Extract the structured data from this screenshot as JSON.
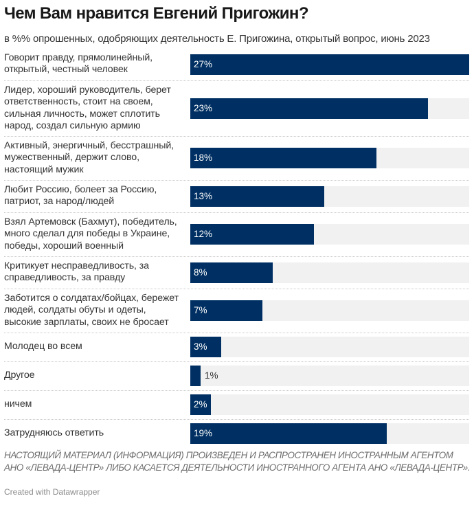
{
  "chart_data": {
    "type": "bar",
    "orientation": "horizontal",
    "title": "Чем Вам нравится Евгений Пригожин?",
    "subtitle": "в %% опрошенных, одобряющих деятельность Е. Пригожина, открытый вопрос, июнь 2023",
    "xlim": [
      0,
      27
    ],
    "value_suffix": "%",
    "categories": [
      "Говорит правду, прямолинейный, открытый, честный человек",
      "Лидер, хороший руководитель, берет ответственность, стоит на своем, сильная личность, может сплотить народ, создал сильную армию",
      "Активный, энергичный, бесстрашный, мужественный, держит слово, настоящий мужик",
      "Любит Россию, болеет за Россию, патриот, за народ/людей",
      "Взял Артемовск (Бахмут), победитель, много сделал для победы в Украине, победы, хороший военный",
      "Критикует несправедливость, за справедливость, за правду",
      "Заботится о солдатах/бойцах, бережет людей, солдаты обуты и одеты, высокие зарплаты, своих не бросает",
      "Молодец во всем",
      "Другое",
      "ничем",
      "Затрудняюсь ответить"
    ],
    "values": [
      27,
      23,
      18,
      13,
      12,
      8,
      7,
      3,
      1,
      2,
      19
    ],
    "value_labels": [
      "27%",
      "23%",
      "18%",
      "13%",
      "12%",
      "8%",
      "7%",
      "3%",
      "1%",
      "2%",
      "19%"
    ],
    "colors": {
      "bar": "#003063",
      "track": "#f1f1f1",
      "label_inside": "#ffffff",
      "label_outside": "#333333"
    }
  },
  "notes": "НАСТОЯЩИЙ МАТЕРИАЛ (ИНФОРМАЦИЯ) ПРОИЗВЕДЕН И РАСПРОСТРАНЕН ИНОСТРАННЫМ АГЕНТОМ АНО «ЛЕВАДА-ЦЕНТР» ЛИБО КАСАЕТСЯ ДЕЯТЕЛЬНОСТИ ИНОСТРАННОГО АГЕНТА АНО «ЛЕВАДА-ЦЕНТР».",
  "credit": "Created with Datawrapper"
}
